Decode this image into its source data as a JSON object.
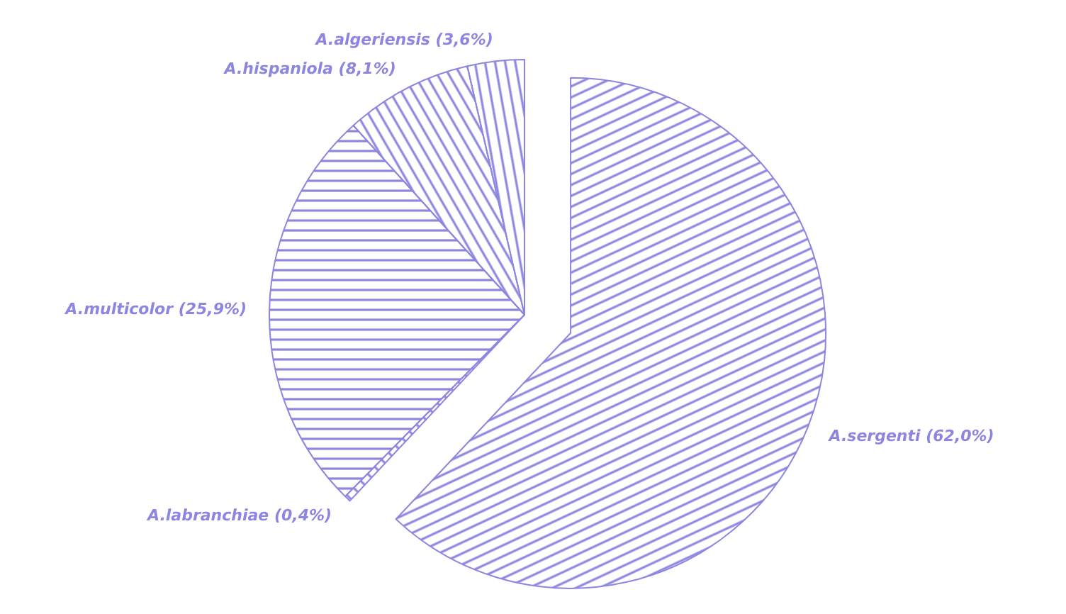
{
  "chart_data": {
    "type": "pie",
    "categories": [
      "A.sergenti",
      "A.labranchiae",
      "A.multicolor",
      "A.hispaniola",
      "A.algeriensis"
    ],
    "values": [
      62.0,
      0.4,
      25.9,
      8.1,
      3.6
    ],
    "value_labels": [
      "(62,0%)",
      "(0,4%)",
      "(25,9%)",
      "(8,1%)",
      "(3,6%)"
    ],
    "colors": [
      "#8c86e0",
      "#8c86e0",
      "#8c86e0",
      "#8c86e0",
      "#8c86e0"
    ]
  }
}
